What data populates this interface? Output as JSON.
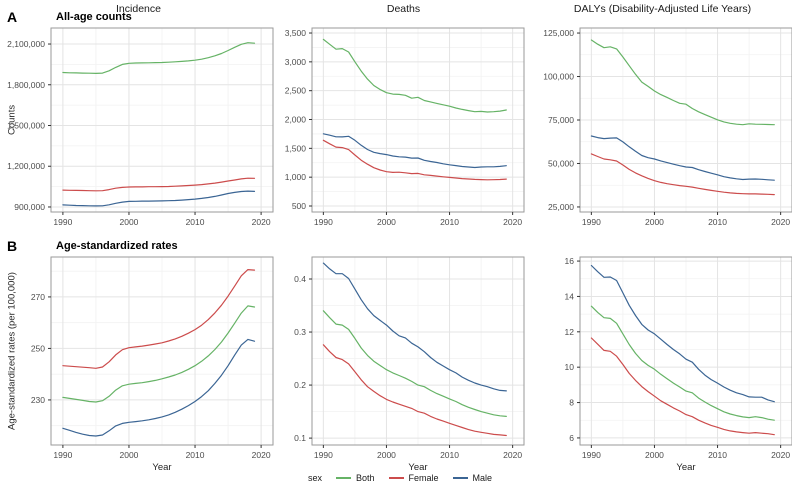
{
  "figure": {
    "column_titles": [
      "Incidence",
      "Deaths",
      "DALYs (Disability-Adjusted Life Years)"
    ],
    "panel_a_label": "A",
    "panel_a_title": "All-age counts",
    "panel_b_label": "B",
    "panel_b_title": "Age-standardized rates",
    "ylabel_a": "Counts",
    "ylabel_b": "Age-standardized rates (per 100,000)"
  },
  "colors": {
    "both": "#66b366",
    "female": "#cc4c4c",
    "male": "#3b6594"
  },
  "legend": {
    "title": "sex",
    "position": "bottom",
    "items": [
      {
        "label": "Both",
        "color_key": "both"
      },
      {
        "label": "Female",
        "color_key": "female"
      },
      {
        "label": "Male",
        "color_key": "male"
      }
    ]
  },
  "years": [
    1990,
    1991,
    1992,
    1993,
    1994,
    1995,
    1996,
    1997,
    1998,
    1999,
    2000,
    2001,
    2002,
    2003,
    2004,
    2005,
    2006,
    2007,
    2008,
    2009,
    2010,
    2011,
    2012,
    2013,
    2014,
    2015,
    2016,
    2017,
    2018,
    2019
  ],
  "chart_data": [
    {
      "mount": "chart-a1",
      "type": "line",
      "panel": "A",
      "measure": "Incidence",
      "title": "Incidence",
      "xlabel": "",
      "ylabel": "Counts",
      "xlim": [
        1988.2,
        2021.8
      ],
      "ylim": [
        863000,
        2218000
      ],
      "xticks": [
        1990,
        2000,
        2010,
        2020
      ],
      "xticks_minor": [
        1995,
        2005,
        2015
      ],
      "yticks": [
        900000,
        1200000,
        1500000,
        1800000,
        2100000
      ],
      "ytick_labels": [
        "900,000",
        "1,200,000",
        "1,500,000",
        "1,800,000",
        "2,100,000"
      ],
      "yticks_minor": [
        1050000,
        1350000,
        1650000,
        1950000
      ],
      "grid": true,
      "series": [
        {
          "name": "Both",
          "color_key": "both",
          "values": [
            1890000,
            1888000,
            1887000,
            1886000,
            1885000,
            1884000,
            1886000,
            1903000,
            1928000,
            1950000,
            1958000,
            1960000,
            1961000,
            1962000,
            1963000,
            1964000,
            1966000,
            1969000,
            1972000,
            1976000,
            1981000,
            1988000,
            1999000,
            2013000,
            2030000,
            2052000,
            2076000,
            2098000,
            2110000,
            2106000
          ]
        },
        {
          "name": "Female",
          "color_key": "female",
          "values": [
            1024000,
            1023000,
            1022000,
            1021000,
            1020000,
            1019000,
            1020000,
            1028000,
            1038000,
            1044000,
            1047000,
            1048000,
            1048000,
            1049000,
            1049000,
            1050000,
            1051000,
            1053000,
            1055000,
            1058000,
            1061000,
            1065000,
            1070000,
            1076000,
            1083000,
            1091000,
            1099000,
            1107000,
            1112000,
            1111000
          ]
        },
        {
          "name": "Male",
          "color_key": "male",
          "values": [
            915000,
            913000,
            911000,
            910000,
            909000,
            908000,
            909000,
            916000,
            927000,
            936000,
            941000,
            942000,
            943000,
            943000,
            944000,
            945000,
            946000,
            948000,
            951000,
            954000,
            958000,
            963000,
            970000,
            978000,
            988000,
            999000,
            1007000,
            1014000,
            1017000,
            1015000
          ]
        }
      ]
    },
    {
      "mount": "chart-a2",
      "type": "line",
      "panel": "A",
      "measure": "Deaths",
      "title": "Deaths",
      "xlabel": "",
      "ylabel": "",
      "xlim": [
        1988.2,
        2021.8
      ],
      "ylim": [
        396,
        3587
      ],
      "xticks": [
        1990,
        2000,
        2010,
        2020
      ],
      "xticks_minor": [
        1995,
        2005,
        2015
      ],
      "yticks": [
        500,
        1000,
        1500,
        2000,
        2500,
        3000,
        3500
      ],
      "ytick_labels": [
        "500",
        "1,000",
        "1,500",
        "2,000",
        "2,500",
        "3,000",
        "3,500"
      ],
      "yticks_minor": [
        750,
        1250,
        1750,
        2250,
        2750,
        3250
      ],
      "grid": true,
      "series": [
        {
          "name": "Both",
          "color_key": "both",
          "values": [
            3390,
            3305,
            3220,
            3230,
            3170,
            3000,
            2840,
            2700,
            2590,
            2520,
            2465,
            2440,
            2435,
            2420,
            2370,
            2385,
            2330,
            2305,
            2280,
            2255,
            2230,
            2200,
            2175,
            2155,
            2135,
            2140,
            2130,
            2135,
            2145,
            2165
          ]
        },
        {
          "name": "Female",
          "color_key": "female",
          "values": [
            1640,
            1578,
            1522,
            1512,
            1478,
            1385,
            1295,
            1225,
            1165,
            1125,
            1095,
            1082,
            1086,
            1076,
            1062,
            1066,
            1042,
            1030,
            1018,
            1006,
            996,
            986,
            976,
            968,
            961,
            958,
            955,
            957,
            960,
            967
          ]
        },
        {
          "name": "Male",
          "color_key": "male",
          "values": [
            1752,
            1728,
            1700,
            1698,
            1708,
            1640,
            1552,
            1480,
            1432,
            1408,
            1392,
            1368,
            1354,
            1348,
            1330,
            1332,
            1292,
            1272,
            1255,
            1232,
            1215,
            1200,
            1185,
            1176,
            1168,
            1176,
            1180,
            1180,
            1186,
            1199
          ]
        }
      ]
    },
    {
      "mount": "chart-a3",
      "type": "line",
      "panel": "A",
      "measure": "DALYs",
      "title": "DALYs (Disability-Adjusted Life Years)",
      "xlabel": "",
      "ylabel": "",
      "xlim": [
        1988.2,
        2021.8
      ],
      "ylim": [
        22100,
        127900
      ],
      "xticks": [
        1990,
        2000,
        2010,
        2020
      ],
      "xticks_minor": [
        1995,
        2005,
        2015
      ],
      "yticks": [
        25000,
        50000,
        75000,
        100000,
        125000
      ],
      "ytick_labels": [
        "25,000",
        "50,000",
        "75,000",
        "100,000",
        "125,000"
      ],
      "yticks_minor": [
        37500,
        62500,
        87500,
        112500
      ],
      "grid": true,
      "series": [
        {
          "name": "Both",
          "color_key": "both",
          "values": [
            121000,
            118600,
            116600,
            117100,
            115900,
            111200,
            106200,
            101300,
            96800,
            94300,
            91700,
            89600,
            88000,
            86200,
            84600,
            84100,
            81600,
            79700,
            78100,
            76600,
            75100,
            73900,
            73100,
            72600,
            72300,
            72800,
            72600,
            72500,
            72400,
            72300
          ]
        },
        {
          "name": "Female",
          "color_key": "female",
          "values": [
            55500,
            54000,
            52600,
            52100,
            51400,
            49100,
            46600,
            44600,
            42900,
            41400,
            40100,
            39100,
            38400,
            37800,
            37300,
            36900,
            36400,
            35700,
            35100,
            34500,
            34000,
            33500,
            33100,
            32800,
            32600,
            32500,
            32500,
            32400,
            32300,
            32100
          ]
        },
        {
          "name": "Male",
          "color_key": "male",
          "values": [
            65800,
            64900,
            64300,
            64600,
            64700,
            62400,
            59600,
            57000,
            54600,
            53300,
            52600,
            51500,
            50500,
            49600,
            48700,
            48000,
            47700,
            46400,
            45400,
            44400,
            43500,
            42400,
            41700,
            41200,
            40800,
            41000,
            41100,
            40900,
            40600,
            40400
          ]
        }
      ]
    },
    {
      "mount": "chart-b1",
      "type": "line",
      "panel": "B",
      "measure": "Incidence",
      "title": "Incidence",
      "xlabel": "Year",
      "ylabel": "Age-standardized rates (per 100,000)",
      "xlim": [
        1988.2,
        2021.8
      ],
      "ylim": [
        212.5,
        285.5
      ],
      "xticks": [
        1990,
        2000,
        2010,
        2020
      ],
      "xticks_minor": [
        1995,
        2005,
        2015
      ],
      "yticks": [
        230,
        250,
        270
      ],
      "ytick_labels": [
        "230",
        "250",
        "270"
      ],
      "yticks_minor": [
        220,
        240,
        260,
        280
      ],
      "grid": true,
      "series": [
        {
          "name": "Both",
          "color_key": "both",
          "values": [
            231.0,
            230.6,
            230.2,
            229.8,
            229.4,
            229.2,
            229.7,
            231.4,
            233.8,
            235.5,
            236.1,
            236.4,
            236.7,
            237.1,
            237.6,
            238.2,
            238.9,
            239.7,
            240.7,
            241.9,
            243.3,
            245.0,
            247.1,
            249.6,
            252.5,
            256.0,
            259.8,
            263.7,
            266.5,
            266.1
          ]
        },
        {
          "name": "Female",
          "color_key": "female",
          "values": [
            243.3,
            243.1,
            242.9,
            242.7,
            242.5,
            242.3,
            242.8,
            244.8,
            247.5,
            249.5,
            250.3,
            250.6,
            250.9,
            251.3,
            251.7,
            252.2,
            252.9,
            253.7,
            254.7,
            255.9,
            257.3,
            259.0,
            261.2,
            263.8,
            266.8,
            270.3,
            274.2,
            278.2,
            280.6,
            280.4
          ]
        },
        {
          "name": "Male",
          "color_key": "male",
          "values": [
            219.0,
            218.2,
            217.4,
            216.7,
            216.2,
            216.0,
            216.4,
            218.0,
            219.9,
            220.9,
            221.3,
            221.6,
            221.9,
            222.3,
            222.8,
            223.4,
            224.2,
            225.2,
            226.4,
            227.8,
            229.4,
            231.3,
            233.6,
            236.4,
            239.6,
            243.3,
            247.4,
            251.3,
            253.5,
            252.8
          ]
        }
      ]
    },
    {
      "mount": "chart-b2",
      "type": "line",
      "panel": "B",
      "measure": "Deaths",
      "title": "Deaths",
      "xlabel": "Year",
      "ylabel": "",
      "xlim": [
        1988.2,
        2021.8
      ],
      "ylim": [
        0.087,
        0.4415
      ],
      "xticks": [
        1990,
        2000,
        2010,
        2020
      ],
      "xticks_minor": [
        1995,
        2005,
        2015
      ],
      "yticks": [
        0.1,
        0.2,
        0.3,
        0.4
      ],
      "ytick_labels": [
        "0.1",
        "0.2",
        "0.3",
        "0.4"
      ],
      "yticks_minor": [
        0.15,
        0.25,
        0.35
      ],
      "grid": true,
      "series": [
        {
          "name": "Both",
          "color_key": "both",
          "values": [
            0.34,
            0.327,
            0.315,
            0.313,
            0.305,
            0.288,
            0.27,
            0.256,
            0.245,
            0.237,
            0.229,
            0.223,
            0.218,
            0.213,
            0.207,
            0.2,
            0.197,
            0.19,
            0.184,
            0.179,
            0.174,
            0.169,
            0.163,
            0.158,
            0.154,
            0.15,
            0.147,
            0.144,
            0.142,
            0.141
          ]
        },
        {
          "name": "Female",
          "color_key": "female",
          "values": [
            0.276,
            0.263,
            0.252,
            0.248,
            0.24,
            0.225,
            0.21,
            0.197,
            0.188,
            0.18,
            0.173,
            0.168,
            0.164,
            0.16,
            0.156,
            0.15,
            0.147,
            0.141,
            0.136,
            0.132,
            0.128,
            0.124,
            0.12,
            0.116,
            0.113,
            0.111,
            0.109,
            0.107,
            0.106,
            0.105
          ]
        },
        {
          "name": "Male",
          "color_key": "male",
          "values": [
            0.43,
            0.419,
            0.41,
            0.41,
            0.401,
            0.381,
            0.361,
            0.344,
            0.331,
            0.322,
            0.313,
            0.302,
            0.293,
            0.289,
            0.279,
            0.272,
            0.263,
            0.252,
            0.243,
            0.236,
            0.229,
            0.223,
            0.215,
            0.209,
            0.204,
            0.2,
            0.197,
            0.193,
            0.19,
            0.189
          ]
        }
      ]
    },
    {
      "mount": "chart-b3",
      "type": "line",
      "panel": "B",
      "measure": "DALYs",
      "title": "DALYs (Disability-Adjusted Life Years)",
      "xlabel": "Year",
      "ylabel": "",
      "xlim": [
        1988.2,
        2021.8
      ],
      "ylim": [
        5.6,
        16.23
      ],
      "xticks": [
        1990,
        2000,
        2010,
        2020
      ],
      "xticks_minor": [
        1995,
        2005,
        2015
      ],
      "yticks": [
        6,
        8,
        10,
        12,
        14,
        16
      ],
      "ytick_labels": [
        "6",
        "8",
        "10",
        "12",
        "14",
        "16"
      ],
      "yticks_minor": [
        7,
        9,
        11,
        13,
        15
      ],
      "grid": true,
      "series": [
        {
          "name": "Both",
          "color_key": "both",
          "values": [
            13.45,
            13.1,
            12.8,
            12.76,
            12.48,
            11.88,
            11.28,
            10.78,
            10.38,
            10.1,
            9.88,
            9.6,
            9.35,
            9.1,
            8.88,
            8.65,
            8.55,
            8.25,
            8.03,
            7.83,
            7.65,
            7.48,
            7.35,
            7.26,
            7.19,
            7.15,
            7.2,
            7.15,
            7.06,
            7.0
          ]
        },
        {
          "name": "Female",
          "color_key": "female",
          "values": [
            11.65,
            11.3,
            10.95,
            10.9,
            10.62,
            10.15,
            9.65,
            9.25,
            8.9,
            8.62,
            8.36,
            8.1,
            7.9,
            7.7,
            7.52,
            7.32,
            7.2,
            7.0,
            6.85,
            6.71,
            6.6,
            6.48,
            6.4,
            6.34,
            6.3,
            6.27,
            6.3,
            6.27,
            6.24,
            6.18
          ]
        },
        {
          "name": "Male",
          "color_key": "male",
          "values": [
            15.75,
            15.4,
            15.08,
            15.1,
            14.9,
            14.2,
            13.5,
            12.92,
            12.42,
            12.1,
            11.88,
            11.58,
            11.28,
            11.0,
            10.75,
            10.45,
            10.28,
            9.88,
            9.55,
            9.3,
            9.1,
            8.88,
            8.7,
            8.55,
            8.45,
            8.32,
            8.3,
            8.3,
            8.15,
            8.05
          ]
        }
      ]
    }
  ]
}
